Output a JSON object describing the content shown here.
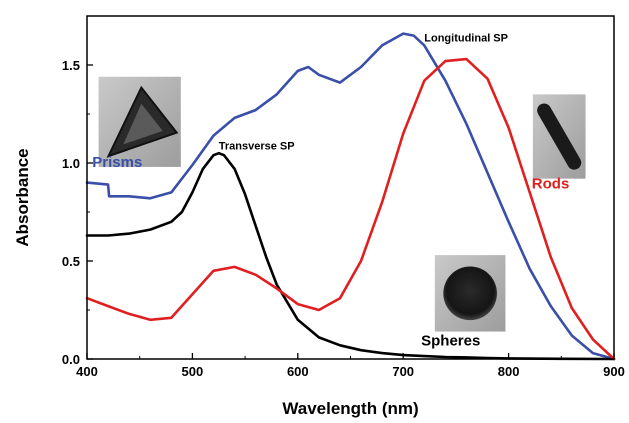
{
  "chart_data": {
    "type": "line",
    "xlabel": "Wavelength (nm)",
    "ylabel": "Absorbance",
    "xlim": [
      400,
      900
    ],
    "ylim": [
      0,
      1.75
    ],
    "x_ticks": [
      "400",
      "500",
      "600",
      "700",
      "800",
      "900"
    ],
    "y_ticks": [
      "0.0",
      "0.5",
      "1.0",
      "1.5"
    ],
    "grid": false,
    "series": [
      {
        "name": "Prisms",
        "color": "#3a4fa8",
        "x": [
          400,
          420,
          421,
          440,
          460,
          480,
          500,
          520,
          540,
          560,
          580,
          600,
          610,
          620,
          640,
          660,
          680,
          700,
          710,
          720,
          740,
          760,
          780,
          800,
          820,
          840,
          860,
          880,
          900
        ],
        "y": [
          0.9,
          0.89,
          0.83,
          0.83,
          0.82,
          0.85,
          0.99,
          1.14,
          1.23,
          1.27,
          1.35,
          1.47,
          1.49,
          1.45,
          1.41,
          1.49,
          1.6,
          1.66,
          1.65,
          1.6,
          1.42,
          1.2,
          0.95,
          0.7,
          0.46,
          0.27,
          0.12,
          0.03,
          0.0
        ]
      },
      {
        "name": "Transverse SP",
        "color": "#000000",
        "x": [
          400,
          420,
          440,
          460,
          480,
          490,
          500,
          510,
          520,
          525,
          530,
          540,
          550,
          560,
          570,
          580,
          600,
          620,
          640,
          660,
          680,
          700,
          720,
          740,
          760,
          780,
          800,
          850,
          900
        ],
        "y": [
          0.63,
          0.63,
          0.64,
          0.66,
          0.7,
          0.75,
          0.85,
          0.97,
          1.04,
          1.05,
          1.04,
          0.97,
          0.84,
          0.68,
          0.52,
          0.38,
          0.2,
          0.11,
          0.07,
          0.045,
          0.03,
          0.02,
          0.015,
          0.01,
          0.008,
          0.005,
          0.003,
          0.001,
          0.0
        ]
      },
      {
        "name": "Longitudinal SP",
        "color": "#e02020",
        "x": [
          400,
          420,
          440,
          460,
          480,
          500,
          520,
          540,
          560,
          580,
          600,
          620,
          640,
          660,
          680,
          700,
          720,
          740,
          760,
          780,
          800,
          820,
          840,
          860,
          880,
          900
        ],
        "y": [
          0.31,
          0.27,
          0.23,
          0.2,
          0.21,
          0.33,
          0.45,
          0.47,
          0.43,
          0.36,
          0.28,
          0.25,
          0.31,
          0.5,
          0.8,
          1.15,
          1.42,
          1.52,
          1.53,
          1.43,
          1.18,
          0.85,
          0.52,
          0.26,
          0.1,
          0.0
        ]
      }
    ],
    "annotations": [
      {
        "text": "Transverse SP",
        "x": 525,
        "y": 1.07,
        "color": "#000000"
      },
      {
        "text": "Longitudinal SP",
        "x": 720,
        "y": 1.62,
        "color": "#000000"
      },
      {
        "text": "Prisms",
        "x": 405,
        "y": 0.98,
        "color": "#3a4fa8"
      },
      {
        "text": "Rods",
        "x": 822,
        "y": 0.87,
        "color": "#e02020"
      },
      {
        "text": "Spheres",
        "x": 717,
        "y": 0.07,
        "color": "#000000"
      }
    ],
    "insets": [
      {
        "name": "prism-image",
        "x0": 411,
        "x1": 489,
        "y0": 0.98,
        "y1": 1.44
      },
      {
        "name": "rod-image",
        "x0": 823,
        "x1": 873,
        "y0": 0.92,
        "y1": 1.35
      },
      {
        "name": "sphere-image",
        "x0": 730,
        "x1": 797,
        "y0": 0.14,
        "y1": 0.53
      }
    ]
  }
}
